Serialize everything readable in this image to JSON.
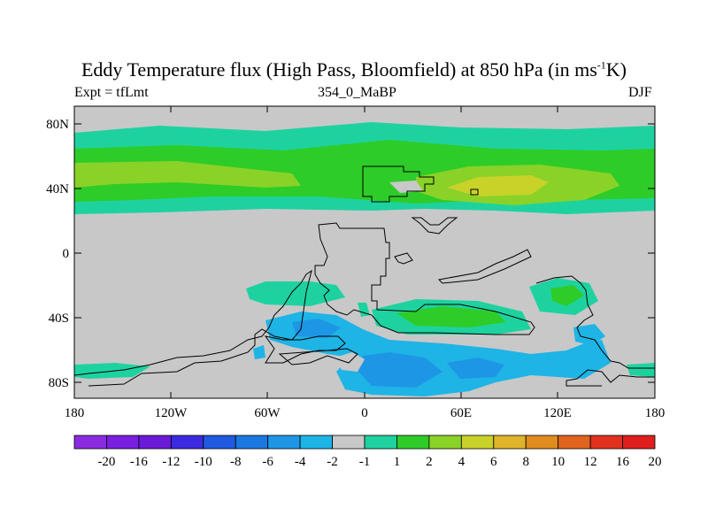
{
  "header": {
    "title_main": "Eddy Temperature flux (High Pass, Bloomfield) at 850 hPa (in ms",
    "title_sup": "-1",
    "title_end": "K)",
    "left_label": "Expt = tfLmt",
    "center_label": "354_0_MaBP",
    "right_label": "DJF"
  },
  "map": {
    "lat_labels": [
      "80N",
      "40N",
      "0",
      "40S",
      "80S"
    ],
    "lon_labels": [
      "180",
      "120W",
      "60W",
      "0",
      "60E",
      "120E",
      "180"
    ],
    "background_color": "#c8c8c8"
  },
  "colorbar": {
    "colors": [
      "#8a2be2",
      "#7a1fe0",
      "#6a1ad8",
      "#3c2ae0",
      "#1f5ae0",
      "#1a78e0",
      "#1e96e6",
      "#1eb4e6",
      "#c8c8c8",
      "#1ed2a0",
      "#2ecc28",
      "#8ad228",
      "#c8d228",
      "#e0b428",
      "#e08c1e",
      "#e0641e",
      "#e0321e",
      "#e01e1e"
    ],
    "labels": [
      "-20",
      "-16",
      "-12",
      "-10",
      "-8",
      "-6",
      "-4",
      "-2",
      "-1",
      "1",
      "2",
      "4",
      "6",
      "8",
      "10",
      "12",
      "16",
      "20"
    ]
  }
}
